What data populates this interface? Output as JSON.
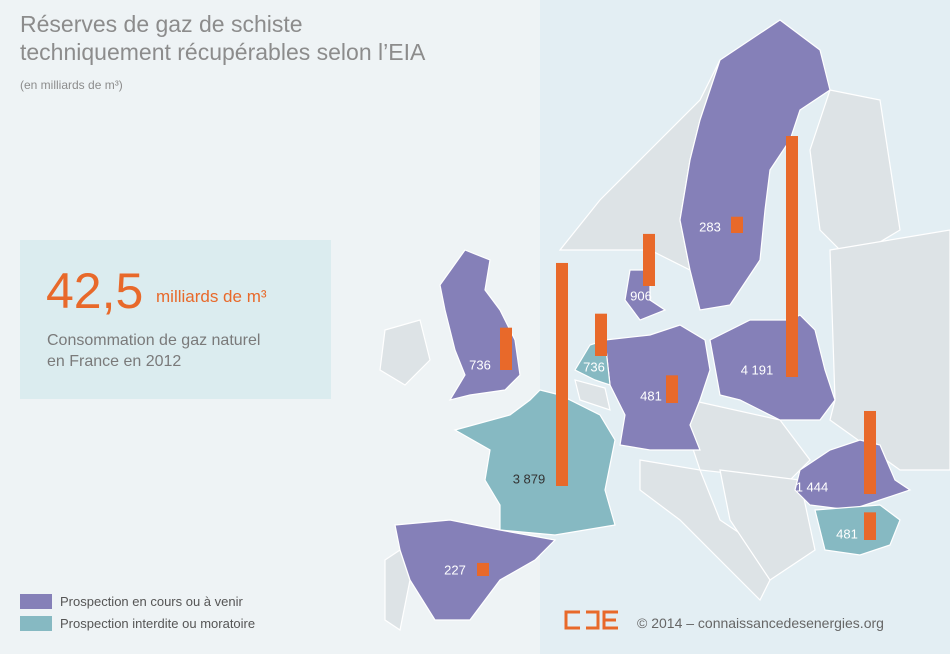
{
  "title": [
    "Réserves de gaz de schiste",
    "techniquement récupérables selon l’EIA"
  ],
  "subtitle": "(en milliards de m³)",
  "callout": {
    "value": "42,5",
    "unit": "milliards de m³",
    "text": [
      "Consommation de gaz naturel",
      "en France en 2012"
    ]
  },
  "legend": [
    {
      "name": "Prospection en cours ou à venir",
      "color": "#8580b8"
    },
    {
      "name": "Prospection interdite ou moratoire",
      "color": "#86b9c2"
    }
  ],
  "bar_color": "#e8692a",
  "values": [
    736,
    736,
    906,
    283,
    481,
    4191,
    3879,
    227,
    1444,
    481
  ],
  "value_labels": [
    "736",
    "736",
    "906",
    "283",
    "481",
    "4 191",
    "3 879",
    "227",
    "1 444",
    "481"
  ],
  "credit": "© 2014 – connaissancedesenergies.org"
}
